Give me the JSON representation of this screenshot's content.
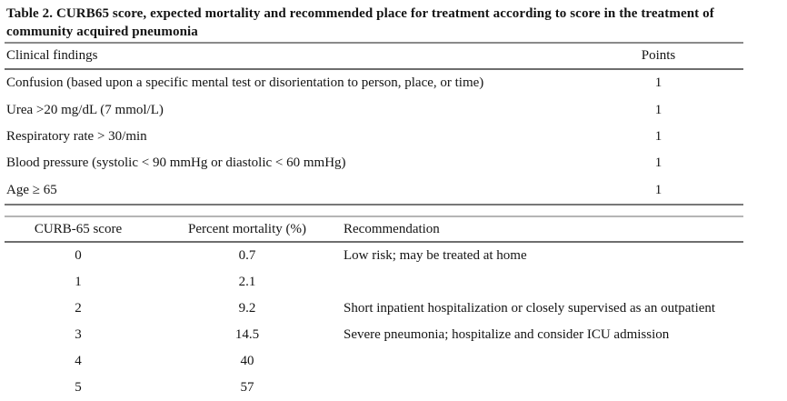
{
  "caption": "Table 2. CURB65 score, expected mortality and recommended place for treatment according to score in the treatment of community acquired pneumonia",
  "findings_table": {
    "headers": {
      "finding": "Clinical findings",
      "points": "Points"
    },
    "rows": [
      {
        "finding": "Confusion (based upon a specific mental test or disorientation to person, place, or time)",
        "points": "1"
      },
      {
        "finding": "Urea >20 mg/dL (7 mmol/L)",
        "points": "1"
      },
      {
        "finding": "Respiratory rate > 30/min",
        "points": "1"
      },
      {
        "finding": "Blood pressure (systolic < 90 mmHg or diastolic < 60 mmHg)",
        "points": "1"
      },
      {
        "finding": "Age ≥ 65",
        "points": "1"
      }
    ]
  },
  "score_table": {
    "headers": {
      "score": "CURB-65 score",
      "mortality": "Percent mortality (%)",
      "recommendation": "Recommendation"
    },
    "rows": [
      {
        "score": "0",
        "mortality": "0.7",
        "recommendation": "Low risk; may be treated at home"
      },
      {
        "score": "1",
        "mortality": "2.1",
        "recommendation": ""
      },
      {
        "score": "2",
        "mortality": "9.2",
        "recommendation": "Short inpatient hospitalization or closely supervised as an outpatient"
      },
      {
        "score": "3",
        "mortality": "14.5",
        "recommendation": "Severe pneumonia; hospitalize and consider ICU admission"
      },
      {
        "score": "4",
        "mortality": "40",
        "recommendation": ""
      },
      {
        "score": "5",
        "mortality": "57",
        "recommendation": ""
      }
    ]
  },
  "colors": {
    "background": "#ffffff",
    "text": "#141414",
    "rule_dark": "#6e6e6e",
    "rule_medium": "#8a8a8a",
    "rule_light": "#b5b5b5"
  }
}
